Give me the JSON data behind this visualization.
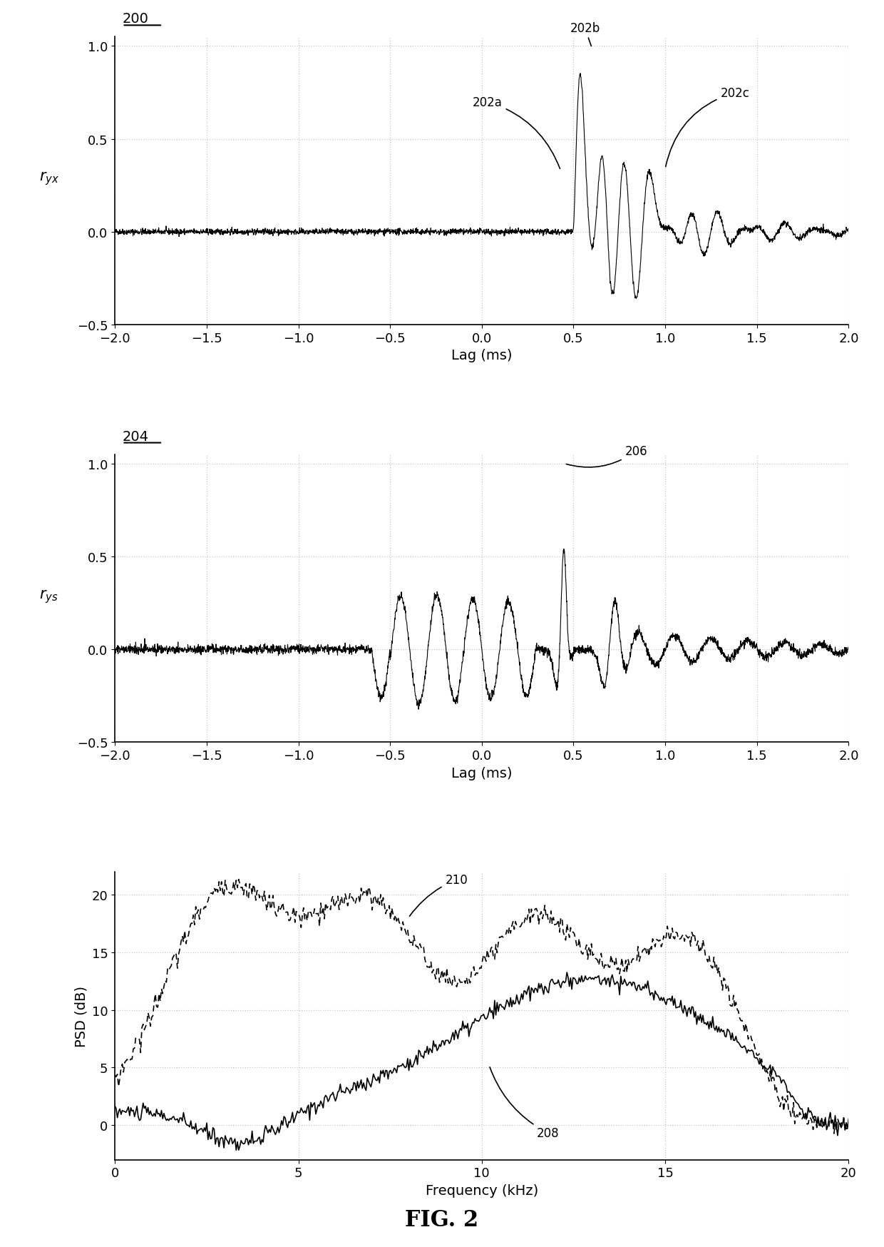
{
  "fig_width": 12.4,
  "fig_height": 17.49,
  "dpi": 100,
  "bg_color": "#ffffff",
  "plot1": {
    "label_x": "Lag (ms)",
    "label_y": "$r_{yx}$",
    "xlim": [
      -2,
      2
    ],
    "ylim": [
      -0.5,
      1.05
    ],
    "yticks": [
      -0.5,
      0,
      0.5,
      1
    ],
    "xticks": [
      -2,
      -1.5,
      -1,
      -0.5,
      0,
      0.5,
      1,
      1.5,
      2
    ],
    "tag": "200"
  },
  "plot2": {
    "label_x": "Lag (ms)",
    "label_y": "$r_{ys}$",
    "xlim": [
      -2,
      2
    ],
    "ylim": [
      -0.5,
      1.05
    ],
    "yticks": [
      -0.5,
      0,
      0.5,
      1
    ],
    "xticks": [
      -2,
      -1.5,
      -1,
      -0.5,
      0,
      0.5,
      1,
      1.5,
      2
    ],
    "tag": "204"
  },
  "plot3": {
    "label_x": "Frequency (kHz)",
    "label_y": "PSD (dB)",
    "xlim": [
      0,
      20
    ],
    "ylim": [
      -3,
      22
    ],
    "yticks": [
      0,
      5,
      10,
      15,
      20
    ],
    "xticks": [
      0,
      5,
      10,
      15,
      20
    ]
  },
  "fig_label": "FIG. 2",
  "line_color": "#000000",
  "grid_color": "#bbbbbb",
  "grid_style": "dotted"
}
